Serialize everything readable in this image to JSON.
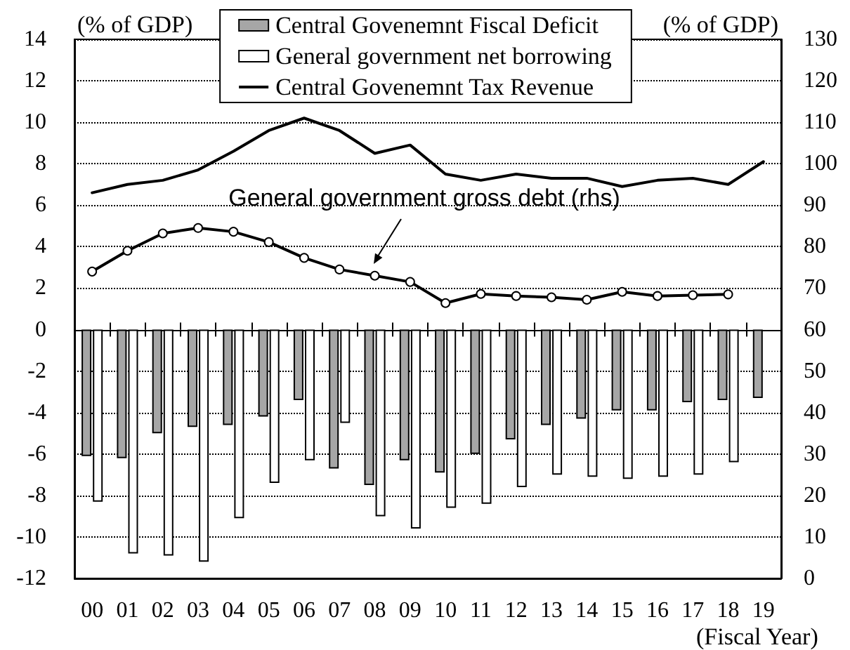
{
  "chart_data": {
    "type": "bar",
    "ylabel": "(% of GDP)",
    "y2label": "(% of GDP)",
    "xlabel": "(Fiscal Year)",
    "categories": [
      "00",
      "01",
      "02",
      "03",
      "04",
      "05",
      "06",
      "07",
      "08",
      "09",
      "10",
      "11",
      "12",
      "13",
      "14",
      "15",
      "16",
      "17",
      "18",
      "19"
    ],
    "series": [
      {
        "name": "Central Govenemnt Fiscal Deficit",
        "type": "bar",
        "color": "#a6a6a6",
        "values": [
          -6.1,
          -6.2,
          -5.0,
          -4.7,
          -4.6,
          -4.2,
          -3.4,
          -6.7,
          -7.5,
          -6.3,
          -6.9,
          -6.0,
          -5.3,
          -4.6,
          -4.3,
          -3.9,
          -3.9,
          -3.5,
          -3.4,
          -3.3
        ]
      },
      {
        "name": "General government net borrowing",
        "type": "bar",
        "color": "#ffffff",
        "values": [
          -8.3,
          -10.8,
          -10.9,
          -11.2,
          -9.1,
          -7.4,
          -6.3,
          -4.5,
          -9.0,
          -9.6,
          -8.6,
          -8.4,
          -7.6,
          -7.0,
          -7.1,
          -7.2,
          -7.1,
          -7.0,
          -6.4,
          null
        ]
      },
      {
        "name": "Central Govenemnt Tax Revenue",
        "type": "line",
        "color": "#000000",
        "marker": "none",
        "values": [
          6.6,
          7.0,
          7.2,
          7.7,
          8.6,
          9.6,
          10.2,
          9.6,
          8.5,
          8.9,
          7.5,
          7.2,
          7.5,
          7.3,
          7.3,
          6.9,
          7.2,
          7.3,
          7.0,
          8.1
        ]
      },
      {
        "type": "line",
        "axis": "y2",
        "color": "#000000",
        "marker": "circle",
        "values": [
          74,
          79,
          83.2,
          84.5,
          83.6,
          81.1,
          77.3,
          74.5,
          73,
          71.5,
          66.4,
          68.6,
          68.1,
          67.8,
          67.2,
          69.1,
          68.1,
          68.3,
          68.5,
          null
        ]
      }
    ],
    "ylim": [
      -12,
      14
    ],
    "yticks": [
      -12,
      -10,
      -8,
      -6,
      -4,
      -2,
      0,
      2,
      4,
      6,
      8,
      10,
      12,
      14
    ],
    "y2lim": [
      0,
      130
    ],
    "y2ticks": [
      0,
      10,
      20,
      30,
      40,
      50,
      60,
      70,
      80,
      90,
      100,
      110,
      120,
      130
    ],
    "grid": "y",
    "legend": "top",
    "annotations": [
      "General government gross debt (rhs)"
    ]
  }
}
